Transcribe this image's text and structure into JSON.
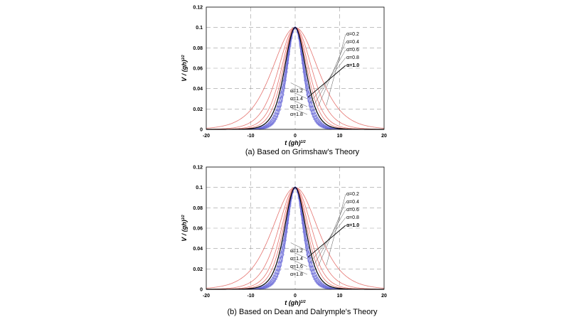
{
  "chart_data": [
    {
      "type": "line",
      "caption": "(a) Based on Grimshaw's Theory",
      "xlabel": "t (gh)",
      "xlabel_sup": "1/2",
      "ylabel": "V / (gh)",
      "ylabel_sup": "1/2",
      "xlim": [
        -20,
        20
      ],
      "ylim": [
        0,
        0.12
      ],
      "xticks": [
        "-20",
        "-10",
        "0",
        "10",
        "20"
      ],
      "yticks": [
        "0",
        "0.02",
        "0.04",
        "0.06",
        "0.08",
        "0.1",
        "0.12"
      ],
      "grid": true,
      "series": [
        {
          "name": "α=0.2",
          "peak": 0.1,
          "halfwidth": 6.8,
          "color": "#e5736f"
        },
        {
          "name": "α=0.4",
          "peak": 0.1,
          "halfwidth": 5.0,
          "color": "#e5736f"
        },
        {
          "name": "α=0.6",
          "peak": 0.1,
          "halfwidth": 4.1,
          "color": "#e5736f"
        },
        {
          "name": "α=0.8",
          "peak": 0.1,
          "halfwidth": 3.6,
          "color": "#e5736f"
        },
        {
          "name": "α=1.0",
          "peak": 0.1,
          "halfwidth": 3.2,
          "color": "#000000"
        },
        {
          "name": "α=1.2",
          "peak": 0.1,
          "halfwidth": 2.9,
          "color": "#6a6ad8"
        },
        {
          "name": "α=1.4",
          "peak": 0.1,
          "halfwidth": 2.7,
          "color": "#6a6ad8"
        },
        {
          "name": "α=1.6",
          "peak": 0.1,
          "halfwidth": 2.5,
          "color": "#6a6ad8"
        },
        {
          "name": "α=1.8",
          "peak": 0.1,
          "halfwidth": 2.35,
          "color": "#6a6ad8"
        }
      ]
    },
    {
      "type": "line",
      "caption": "(b) Based on Dean and Dalrymple's Theory",
      "xlabel": "t (gh)",
      "xlabel_sup": "1/2",
      "ylabel": "V / (gh)",
      "ylabel_sup": "1/2",
      "xlim": [
        -20,
        20
      ],
      "ylim": [
        0,
        0.12
      ],
      "xticks": [
        "-20",
        "-10",
        "0",
        "10",
        "20"
      ],
      "yticks": [
        "0",
        "0.02",
        "0.04",
        "0.06",
        "0.08",
        "0.1",
        "0.12"
      ],
      "grid": true,
      "series": [
        {
          "name": "α=0.2",
          "peak": 0.1,
          "halfwidth": 6.8,
          "color": "#e5736f"
        },
        {
          "name": "α=0.4",
          "peak": 0.1,
          "halfwidth": 5.0,
          "color": "#e5736f"
        },
        {
          "name": "α=0.6",
          "peak": 0.1,
          "halfwidth": 4.1,
          "color": "#e5736f"
        },
        {
          "name": "α=0.8",
          "peak": 0.1,
          "halfwidth": 3.6,
          "color": "#e5736f"
        },
        {
          "name": "α=1.0",
          "peak": 0.1,
          "halfwidth": 3.2,
          "color": "#000000"
        },
        {
          "name": "α=1.2",
          "peak": 0.1,
          "halfwidth": 2.9,
          "color": "#6a6ad8"
        },
        {
          "name": "α=1.4",
          "peak": 0.1,
          "halfwidth": 2.7,
          "color": "#6a6ad8"
        },
        {
          "name": "α=1.6",
          "peak": 0.1,
          "halfwidth": 2.5,
          "color": "#6a6ad8"
        },
        {
          "name": "α=1.8",
          "peak": 0.1,
          "halfwidth": 2.35,
          "color": "#6a6ad8"
        }
      ]
    }
  ]
}
